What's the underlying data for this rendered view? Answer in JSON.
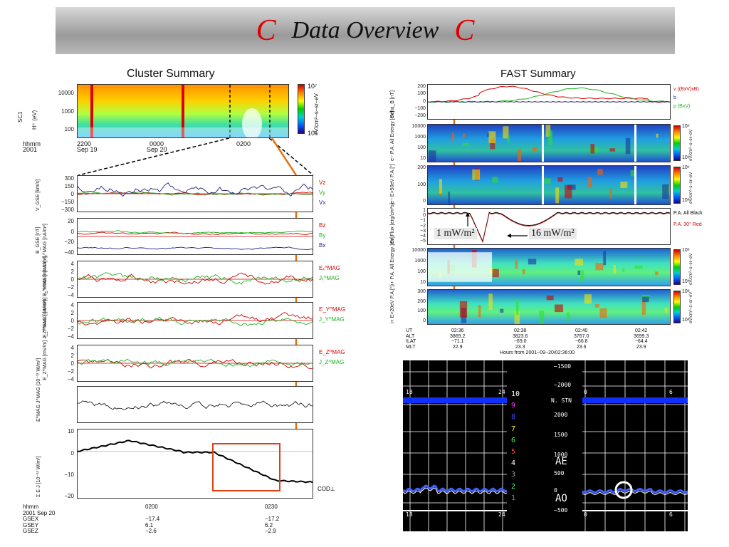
{
  "header": {
    "title": "Data Overview",
    "c_left": "C",
    "c_right": "C"
  },
  "cluster": {
    "title": "Cluster Summary",
    "sc_label": "SC1",
    "spec_ylabel": "H⁺ (eV)",
    "spec_yticks": [
      "10000",
      "1000",
      "100"
    ],
    "cb_unit": "eV/cm²–s–sr–eV",
    "cb_top": "10⁷",
    "cb_bottom": "10²",
    "time_head": "hhmm",
    "year": "2001",
    "times_top": [
      "2200",
      "0000",
      "0200"
    ],
    "dates_top": [
      "Sep 19",
      "Sep 20"
    ],
    "panels": [
      {
        "ylabel": "V_GSE [km/s]",
        "ticks": [
          "300",
          "150",
          "0",
          "−150",
          "−300"
        ],
        "legend": [
          "Vz",
          "Vy",
          "Vx"
        ]
      },
      {
        "ylabel": "B_GSE [nT]",
        "ticks": [
          "20",
          "0",
          "−20",
          "−40"
        ],
        "legend": [
          "Bz",
          "By",
          "Bx"
        ]
      },
      {
        "ylabel": "Eₓ^MAG [mV/m] Jₓ^MAG [nA/m²]",
        "ticks": [
          "4",
          "2",
          "0",
          "−2",
          "−4"
        ],
        "legend": [
          "Eₓ^MAG",
          "Jₓ^MAG"
        ]
      },
      {
        "ylabel": "E_Y^MAG [mV/m] J_Y^MAG [nA/m²]",
        "ticks": [
          "4",
          "2",
          "0",
          "−2",
          "−4"
        ],
        "legend": [
          "E_Y^MAG",
          "J_Y^MAG"
        ]
      },
      {
        "ylabel": "E_Z^MAG [mV/m] J_Z^MAG [nA/m²]",
        "ticks": [
          "4",
          "2",
          "0",
          "−2",
          "−4"
        ],
        "legend": [
          "E_Z^MAG",
          "J_Z^MAG"
        ]
      },
      {
        "ylabel": "E^MAG J^MAG [10⁻¹² W/m³]",
        "ticks": [],
        "legend": []
      },
      {
        "ylabel": "Σ E·J [10⁻¹² W/m²]",
        "ticks": [
          "10",
          "0",
          "−10",
          "−20"
        ],
        "legend": [
          "COD⊥"
        ]
      }
    ],
    "bottom_labels": {
      "head": [
        "hhmm",
        "2001 Sep 20",
        "GSEX",
        "GSEY",
        "GSEZ"
      ],
      "col1": [
        "0200",
        "",
        "−17.4",
        "6.1",
        "−2.6"
      ],
      "col2": [
        "0230",
        "",
        "−17.2",
        "6.2",
        "−2.9"
      ]
    }
  },
  "fast": {
    "title": "FAST Summary",
    "panels": [
      {
        "ylabel": "Delta_B [nT]",
        "ticks": [
          "200",
          "100",
          "0",
          "−100",
          "−200"
        ],
        "legend": [
          "v ((BxV)xB)",
          "b",
          "p (BxV)"
        ]
      },
      {
        "ylabel": "e− P.A. All Energy [eV]",
        "ticks": [
          "10000",
          "1000",
          "100",
          "10"
        ],
        "cb": [
          "10⁹",
          "10⁴"
        ]
      },
      {
        "ylabel": "e− E>50eV P.A.[°]",
        "ticks": [
          "200",
          "100",
          "0"
        ],
        "cb": [
          "10⁹",
          "10⁴"
        ]
      },
      {
        "ylabel": "En.Flux [erg/cm²s]",
        "ticks": [
          "1",
          "0",
          "−1",
          "−2",
          "−3",
          "−4",
          "−5"
        ],
        "legend": [
          "P.A. All Black",
          "P.A. 30° Red"
        ]
      },
      {
        "ylabel": "i+ P.A. All Energy [eV]",
        "ticks": [
          "10000",
          "1000",
          "100",
          "10"
        ],
        "cb": [
          "10⁸",
          "10⁴"
        ]
      },
      {
        "ylabel": "i+ E>20eV P.A.[°]",
        "ticks": [
          "300",
          "200",
          "100",
          "0"
        ],
        "cb": [
          "10⁸",
          "10⁴"
        ]
      }
    ],
    "cb_unit": "eV/cm²–s–sr–eV",
    "callouts": [
      "1 mW/m²",
      "16 mW/m²"
    ],
    "table_head": [
      "UT",
      "ALT",
      "ILAT",
      "MLT"
    ],
    "table_cols": [
      [
        "02:36",
        "3869.2",
        "−71.1",
        "22.9"
      ],
      [
        "02:38",
        "3823.6",
        "−69.0",
        "23.3"
      ],
      [
        "02:40",
        "3767.0",
        "−66.8",
        "23.6"
      ],
      [
        "02:42",
        "3699.3",
        "−64.4",
        "23.9"
      ]
    ],
    "xlabel": "Hours from 2001−09−20/02:36:00"
  },
  "ae": {
    "left_ticks": [
      "18",
      "24"
    ],
    "right_ticks": [
      "0",
      "6"
    ],
    "scale": [
      "−1500",
      "−2000",
      "N. STN",
      "2000",
      "1500",
      "1000",
      "500",
      "0",
      "−500"
    ],
    "ae_label": "AE",
    "ao_label": "AO",
    "numbers": [
      "10",
      "9",
      "8",
      "7",
      "6",
      "5",
      "4",
      "3",
      "2",
      "1"
    ],
    "number_colors": [
      "#ffffff",
      "#ff40ff",
      "#4040ff",
      "#ffff40",
      "#40ff40",
      "#ff4040",
      "#ffffff",
      "#a0a0a0",
      "#40ff80",
      "#ff40a0"
    ]
  },
  "colors": {
    "red": "#d00000",
    "green": "#20b020",
    "blue": "#202080",
    "orange": "#e07010"
  }
}
